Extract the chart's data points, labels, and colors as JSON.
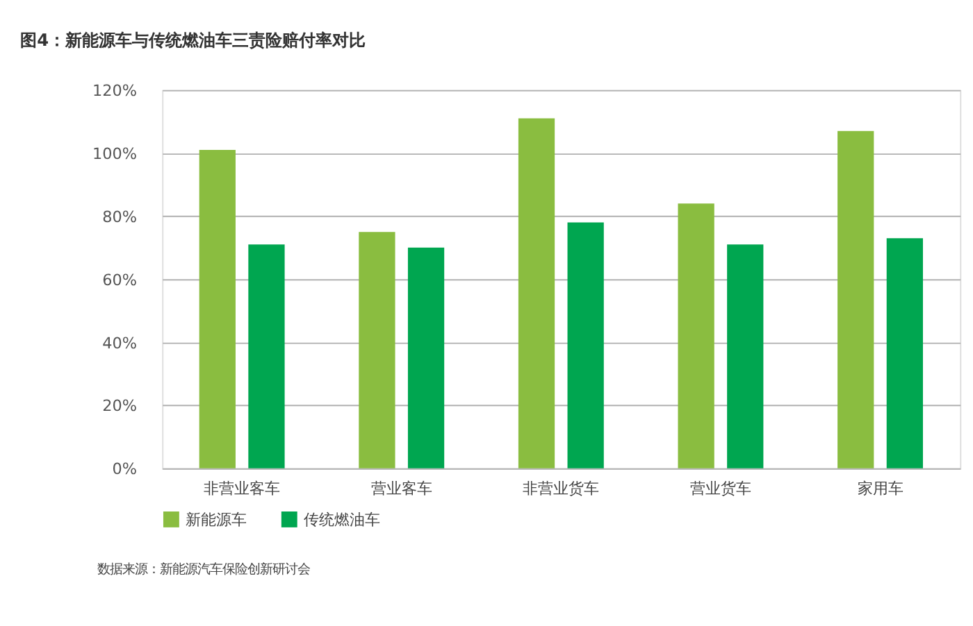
{
  "chart_data": {
    "type": "bar",
    "title": "图4：新能源车与传统燃油车三责险赔付率对比",
    "categories": [
      "非营业客车",
      "营业客车",
      "非营业货车",
      "营业货车",
      "家用车"
    ],
    "series": [
      {
        "name": "新能源车",
        "color": "#8abd40",
        "values": [
          101,
          75,
          111,
          84,
          107
        ]
      },
      {
        "name": "传统燃油车",
        "color": "#00a650",
        "values": [
          71,
          70,
          78,
          71,
          73
        ]
      }
    ],
    "ylim": [
      0,
      120
    ],
    "yticks": [
      {
        "value": 0,
        "label": "0%"
      },
      {
        "value": 20,
        "label": "20%"
      },
      {
        "value": 40,
        "label": "40%"
      },
      {
        "value": 60,
        "label": "60%"
      },
      {
        "value": 80,
        "label": "80%"
      },
      {
        "value": 100,
        "label": "100%"
      },
      {
        "value": 120,
        "label": "120%"
      }
    ],
    "grid": "y",
    "legend": "bottom left",
    "annotations": [
      "数据来源：新能源汽车保险创新研讨会"
    ]
  }
}
